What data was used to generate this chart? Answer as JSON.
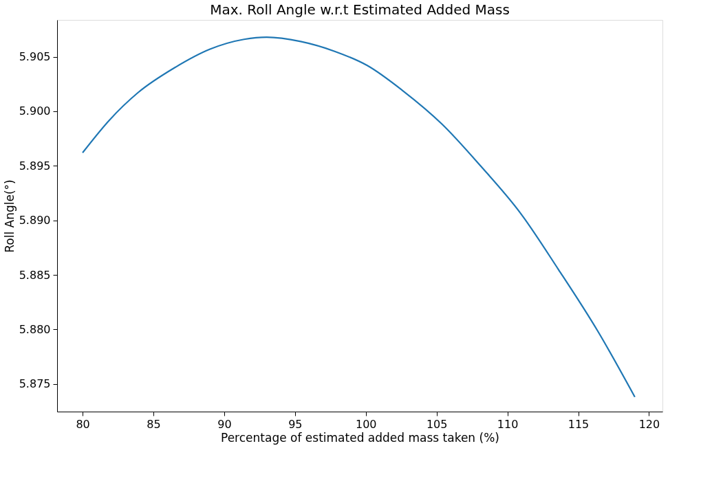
{
  "chart_data": {
    "type": "line",
    "title": "Max. Roll Angle w.r.t Estimated Added Mass",
    "xlabel": "Percentage of estimated added mass taken (%)",
    "ylabel": "Roll Angle(°)",
    "x": [
      80,
      81.9,
      83.9,
      86.5,
      89.0,
      91.4,
      93.0,
      95.4,
      97.8,
      100.1,
      102.6,
      105.4,
      108.1,
      110.9,
      113.6,
      116.4,
      119.0
    ],
    "series": [
      {
        "color": "#1f77b4",
        "values": [
          5.8962,
          5.8992,
          5.9017,
          5.904,
          5.9057,
          5.9066,
          5.9068,
          5.9064,
          5.9055,
          5.9042,
          5.9019,
          5.8988,
          5.895,
          5.8907,
          5.8855,
          5.8798,
          5.8738
        ]
      }
    ],
    "xlim": [
      78.2,
      120.95
    ],
    "ylim": [
      5.87246,
      5.90838
    ],
    "xticks": [
      80,
      85,
      90,
      95,
      100,
      105,
      110,
      115,
      120
    ],
    "yticks": [
      {
        "value": 5.875,
        "label": "5.875"
      },
      {
        "value": 5.88,
        "label": "5.880"
      },
      {
        "value": 5.885,
        "label": "5.885"
      },
      {
        "value": 5.89,
        "label": "5.890"
      },
      {
        "value": 5.895,
        "label": "5.895"
      },
      {
        "value": 5.9,
        "label": "5.900"
      },
      {
        "value": 5.905,
        "label": "5.905"
      }
    ],
    "grid": false,
    "marker": "none",
    "line_style": "solid"
  }
}
